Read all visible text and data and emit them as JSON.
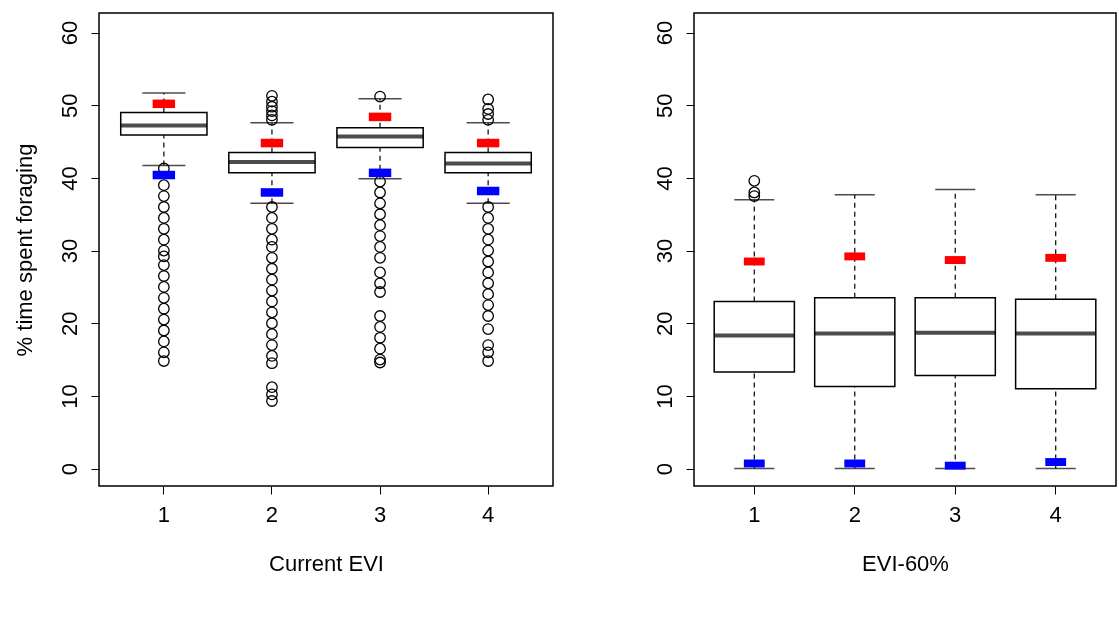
{
  "chart_data": [
    {
      "type": "box",
      "xlabel": "Current EVI",
      "ylabel": "% time spent foraging",
      "categories": [
        "1",
        "2",
        "3",
        "4"
      ],
      "ylim": [
        -2.4,
        62.7
      ],
      "yticks": [
        0,
        10,
        20,
        30,
        40,
        50,
        60
      ],
      "grid": false,
      "boxes": [
        {
          "low": 41.7,
          "q1": 45.9,
          "median": 47.2,
          "q3": 49.0,
          "high": 51.7,
          "outliers": [
            41.3,
            39,
            37.5,
            36,
            34.5,
            33,
            31.5,
            30,
            29.2,
            28,
            26.5,
            25,
            23.5,
            22,
            20.5,
            19,
            17.5,
            16,
            14.8
          ]
        },
        {
          "low": 36.5,
          "q1": 40.7,
          "median": 42.2,
          "q3": 43.5,
          "high": 47.6,
          "outliers": [
            48,
            48.6,
            49.2,
            49.8,
            50.5,
            51.3,
            36,
            34.5,
            33,
            31.5,
            30.5,
            29,
            27.5,
            26,
            24.5,
            23,
            21.5,
            20,
            18.5,
            17,
            15.5,
            14.5,
            11.2,
            10.2,
            9.3
          ]
        },
        {
          "low": 39.9,
          "q1": 44.2,
          "median": 45.7,
          "q3": 46.9,
          "high": 50.9,
          "outliers": [
            51.2,
            39.5,
            38,
            36.5,
            35,
            33.5,
            32,
            30.5,
            29,
            27,
            25.5,
            24.3,
            21,
            19.5,
            18,
            16.5,
            15,
            14.6
          ]
        },
        {
          "low": 36.5,
          "q1": 40.7,
          "median": 42.0,
          "q3": 43.5,
          "high": 47.6,
          "outliers": [
            48,
            48.8,
            49.5,
            50.8,
            36,
            34.5,
            33,
            31.5,
            30,
            28.5,
            27,
            25.5,
            24,
            22.5,
            21,
            19.2,
            17,
            16,
            14.8
          ]
        }
      ],
      "series": [
        {
          "type": "scatter",
          "color": "#ff0000",
          "x": [
            "1",
            "2",
            "3",
            "4"
          ],
          "values": [
            50.2,
            44.8,
            48.4,
            44.8
          ]
        },
        {
          "type": "scatter",
          "color": "#0000ff",
          "x": [
            "1",
            "2",
            "3",
            "4"
          ],
          "values": [
            40.4,
            38.0,
            40.7,
            38.2
          ]
        }
      ]
    },
    {
      "type": "box",
      "xlabel": "EVI-60%",
      "categories": [
        "1",
        "2",
        "3",
        "4"
      ],
      "ylim": [
        -2.4,
        62.7
      ],
      "yticks": [
        0,
        10,
        20,
        30,
        40,
        50,
        60
      ],
      "grid": false,
      "boxes": [
        {
          "low": 0,
          "q1": 13.3,
          "median": 18.3,
          "q3": 23.0,
          "high": 37.0,
          "outliers": [
            37.5,
            38.0,
            39.6
          ]
        },
        {
          "low": 0,
          "q1": 11.3,
          "median": 18.6,
          "q3": 23.5,
          "high": 37.7
        },
        {
          "low": 0,
          "q1": 12.8,
          "median": 18.7,
          "q3": 23.5,
          "high": 38.4
        },
        {
          "low": 0,
          "q1": 11.0,
          "median": 18.6,
          "q3": 23.3,
          "high": 37.7
        }
      ],
      "series": [
        {
          "type": "scatter",
          "color": "#ff0000",
          "x": [
            "1",
            "2",
            "3",
            "4"
          ],
          "values": [
            28.5,
            29.2,
            28.7,
            29.0
          ]
        },
        {
          "type": "scatter",
          "color": "#0000ff",
          "x": [
            "1",
            "2",
            "3",
            "4"
          ],
          "values": [
            0.7,
            0.7,
            0.4,
            0.9
          ]
        }
      ]
    }
  ]
}
